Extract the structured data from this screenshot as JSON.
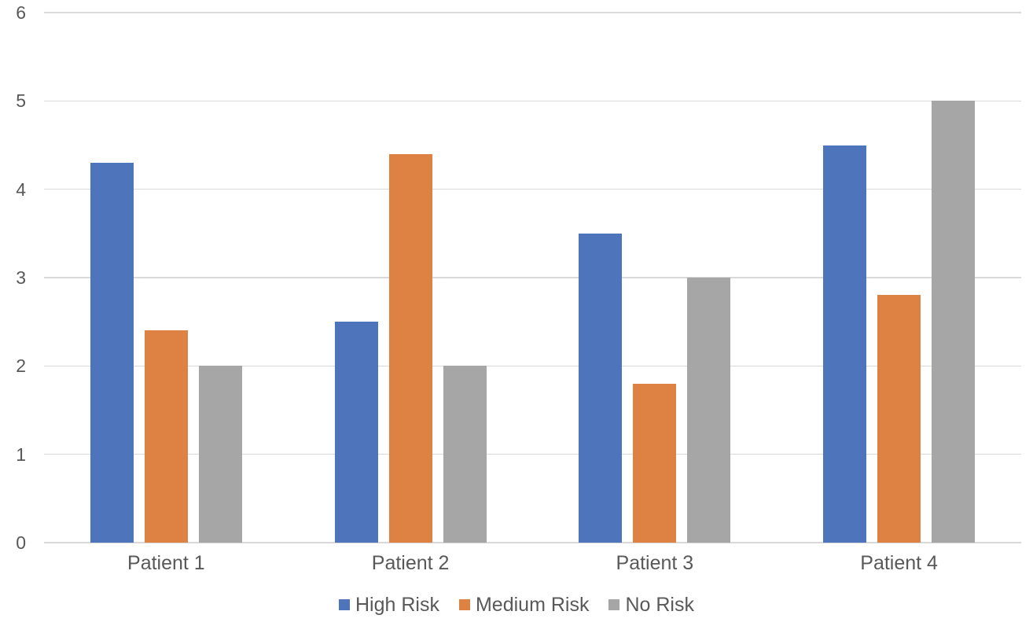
{
  "chart_data": {
    "type": "bar",
    "title": "",
    "xlabel": "",
    "ylabel": "",
    "categories": [
      "Patient 1",
      "Patient 2",
      "Patient 3",
      "Patient 4"
    ],
    "series": [
      {
        "name": "High Risk",
        "color": "#4E74BC",
        "values": [
          4.3,
          2.5,
          3.5,
          4.5
        ]
      },
      {
        "name": "Medium Risk",
        "color": "#DE8243",
        "values": [
          2.4,
          4.4,
          1.8,
          2.8
        ]
      },
      {
        "name": "No Risk",
        "color": "#A6A6A6",
        "values": [
          2.0,
          2.0,
          3.0,
          5.0
        ]
      }
    ],
    "ylim": [
      0,
      6
    ],
    "yticks": [
      0,
      1,
      2,
      3,
      4,
      5,
      6
    ],
    "grid": true,
    "gridline_color": "#D9D9D9",
    "axis_text_color": "#595959",
    "background_color": "#FFFFFF",
    "legend_position": "bottom",
    "legend_labels": [
      "High Risk",
      "Medium Risk",
      "No Risk"
    ]
  }
}
